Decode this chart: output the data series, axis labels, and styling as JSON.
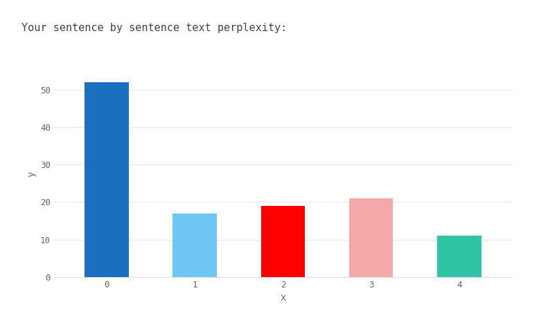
{
  "categories": [
    0,
    1,
    2,
    3,
    4
  ],
  "values": [
    52,
    17,
    19,
    21,
    11
  ],
  "bar_colors": [
    "#1a6fbe",
    "#6ec6f5",
    "#ff0000",
    "#f4a9a8",
    "#2ec4a5"
  ],
  "title": "Your sentence by sentence text perplexity:",
  "xlabel": "x",
  "ylabel": "y",
  "ylim": [
    0,
    55
  ],
  "yticks": [
    0,
    10,
    20,
    30,
    40,
    50
  ],
  "title_fontsize": 11,
  "axis_label_fontsize": 10,
  "tick_fontsize": 9,
  "background_color": "#ffffff",
  "grid_color": "#e8e8e8",
  "bar_width": 0.5,
  "title_font": "monospace",
  "tick_font": "monospace",
  "title_color": "#444444",
  "tick_color": "#666666"
}
